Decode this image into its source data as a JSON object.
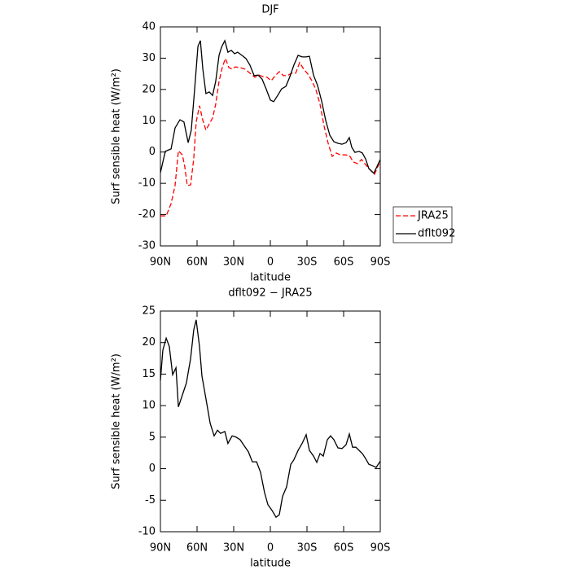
{
  "chart_data": [
    {
      "type": "line",
      "title": "DJF",
      "xlabel": "latitude",
      "ylabel": "Surf sensible heat (W/m²)",
      "xlim": [
        90,
        -90
      ],
      "xticks": [
        {
          "value": 90,
          "label": "90N"
        },
        {
          "value": 60,
          "label": "60N"
        },
        {
          "value": 30,
          "label": "30N"
        },
        0,
        {
          "value": -30,
          "label": "30S"
        },
        {
          "value": -60,
          "label": "60S"
        },
        {
          "value": -90,
          "label": "90S"
        }
      ],
      "ylim": [
        -30,
        40
      ],
      "yticks": [
        -30,
        -20,
        -10,
        0,
        10,
        20,
        30,
        40
      ],
      "legend": "right",
      "series": [
        {
          "name": "JRA25",
          "color": "#ff0000",
          "dash": true,
          "x": [
            90,
            85.3,
            81.3,
            78,
            75.3,
            72,
            70,
            68,
            65.3,
            62.7,
            60.7,
            58,
            55.3,
            52.7,
            50,
            47.3,
            44.7,
            42,
            39.3,
            36.7,
            34,
            31.3,
            28.7,
            24.7,
            20.7,
            16.7,
            12.7,
            9.3,
            6,
            2.7,
            -0.7,
            -4,
            -7.3,
            -10.7,
            -14,
            -17.3,
            -20.7,
            -24,
            -27.3,
            -30.7,
            -34,
            -37.3,
            -40.7,
            -44,
            -47.3,
            -50.7,
            -54,
            -57.3,
            -61.3,
            -64.7,
            -68,
            -71.3,
            -74.7,
            -78,
            -81.3,
            -85.3,
            -90
          ],
          "values": [
            -20.4,
            -20.4,
            -16.5,
            -10.7,
            0.4,
            -0.9,
            -4.8,
            -10.7,
            -10.5,
            -2.2,
            9.6,
            14.8,
            10.1,
            7,
            9,
            10.9,
            15.3,
            22.6,
            27.2,
            29.9,
            27,
            26.5,
            27.2,
            27,
            26.5,
            25.2,
            23.9,
            24.6,
            24.1,
            23.9,
            22.8,
            24.4,
            25.7,
            24.4,
            24.4,
            25.2,
            25.2,
            28.6,
            26.5,
            24.9,
            22.8,
            20,
            15.3,
            8.3,
            2.8,
            -1.4,
            -0.3,
            -0.9,
            -0.9,
            -1.1,
            -3.2,
            -3.7,
            -2.4,
            -4,
            -5.5,
            -7.1,
            -2.9
          ]
        },
        {
          "name": "dflt092",
          "color": "#000000",
          "dash": false,
          "x": [
            90,
            86,
            81.3,
            78,
            74,
            70.7,
            67.3,
            64.7,
            62,
            59.3,
            57.3,
            55.3,
            52.7,
            50,
            47.3,
            44.7,
            42,
            40,
            37.3,
            34.7,
            32,
            29.3,
            26.7,
            23.3,
            20,
            16.7,
            13.3,
            10,
            6.7,
            3.3,
            0,
            -2.7,
            -6,
            -9.3,
            -12.7,
            -16,
            -19.3,
            -22.7,
            -26,
            -29.3,
            -32,
            -35.3,
            -38.7,
            -42,
            -45.3,
            -48.7,
            -52,
            -55.3,
            -58.7,
            -62,
            -64.7,
            -66.7,
            -69.3,
            -72.7,
            -75.3,
            -78,
            -80.7,
            -84.7,
            -90
          ],
          "values": [
            -6.6,
            0.2,
            1,
            7.7,
            10.3,
            9.6,
            3,
            7,
            20,
            33.8,
            35.6,
            26.5,
            18.7,
            19.2,
            18.1,
            22.6,
            30.9,
            33.5,
            35.6,
            31.9,
            32.5,
            31.4,
            31.9,
            30.9,
            29.9,
            27.8,
            24.4,
            24.6,
            23.3,
            20,
            16.6,
            16.1,
            18.1,
            20.2,
            21,
            24.1,
            27.8,
            30.9,
            30.4,
            30.4,
            30.6,
            24.6,
            21.3,
            16.3,
            10.1,
            5.4,
            3.3,
            2.8,
            2.5,
            3,
            4.6,
            1.5,
            -0.1,
            0.2,
            -0.3,
            -2.2,
            -5.3,
            -6.8,
            -2.4
          ]
        }
      ]
    },
    {
      "type": "line",
      "title": "dflt092 − JRA25",
      "xlabel": "latitude",
      "ylabel": "Surf sensible heat (W/m²)",
      "xlim": [
        90,
        -90
      ],
      "xticks": [
        {
          "value": 90,
          "label": "90N"
        },
        {
          "value": 60,
          "label": "60N"
        },
        {
          "value": 30,
          "label": "30N"
        },
        0,
        {
          "value": -30,
          "label": "30S"
        },
        {
          "value": -60,
          "label": "60S"
        },
        {
          "value": -90,
          "label": "90S"
        }
      ],
      "ylim": [
        -10,
        25
      ],
      "yticks": [
        -10,
        -5,
        0,
        5,
        10,
        15,
        20,
        25
      ],
      "series": [
        {
          "color": "#000000",
          "dash": false,
          "x": [
            90,
            88,
            85.3,
            82.7,
            80,
            77.3,
            75.3,
            72,
            68.7,
            65.3,
            62.7,
            60.7,
            58,
            56,
            52.7,
            49.3,
            46,
            43.3,
            40.7,
            37.3,
            34.7,
            31.3,
            28,
            24.7,
            21.3,
            18,
            14.7,
            11.3,
            8,
            4.7,
            2,
            -1.3,
            -4.7,
            -7.3,
            -10,
            -13.3,
            -16.7,
            -19.3,
            -22.7,
            -26,
            -29.3,
            -32,
            -35.3,
            -38,
            -40.7,
            -43.3,
            -46.7,
            -49.3,
            -52,
            -55.3,
            -58.7,
            -62,
            -64.7,
            -67.3,
            -70,
            -72.7,
            -75.3,
            -78,
            -80.7,
            -83.3,
            -86.7,
            -90
          ],
          "values": [
            14,
            18.8,
            20.7,
            19.4,
            14.9,
            16,
            9.8,
            11.7,
            13.6,
            17.5,
            22,
            23.6,
            19.4,
            14.7,
            11.1,
            7.2,
            5.2,
            6.1,
            5.6,
            5.9,
            4,
            5.2,
            5,
            4.6,
            3.6,
            2.7,
            1.1,
            1.1,
            -0.6,
            -3.8,
            -5.7,
            -6.6,
            -7.7,
            -7.3,
            -4.4,
            -2.9,
            0.7,
            1.4,
            2.9,
            4,
            5.4,
            2.9,
            2,
            1,
            2.4,
            2,
            4.6,
            5.2,
            4.6,
            3.3,
            3.2,
            3.8,
            5.5,
            3.4,
            3.4,
            2.9,
            2.4,
            1.6,
            0.7,
            0.5,
            0.2,
            1.2
          ]
        }
      ]
    }
  ]
}
